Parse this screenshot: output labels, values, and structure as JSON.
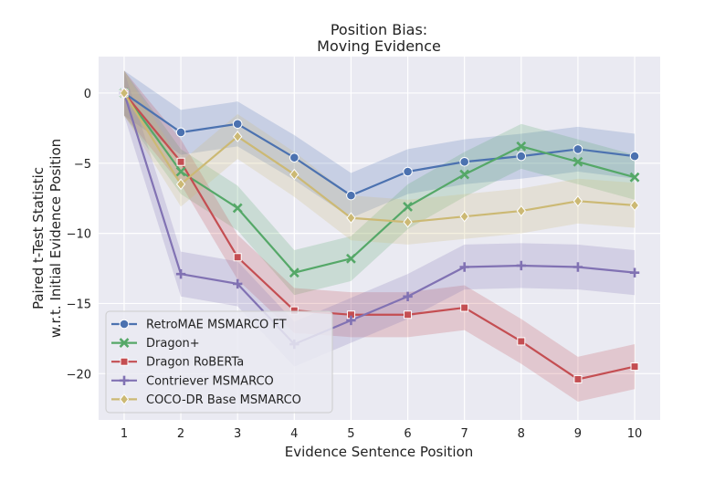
{
  "chart_data": {
    "type": "line",
    "title": [
      "Position Bias:",
      "Moving Evidence"
    ],
    "xlabel": "Evidence Sentence Position",
    "ylabel": [
      "Paired t-Test Statistic",
      "w.r.t. Initial Evidence Position"
    ],
    "x": [
      1,
      2,
      3,
      4,
      5,
      6,
      7,
      8,
      9,
      10
    ],
    "xticks": [
      1,
      2,
      3,
      4,
      5,
      6,
      7,
      8,
      9,
      10
    ],
    "yticks": [
      0,
      -5,
      -10,
      -15,
      -20
    ],
    "xlim": [
      0.55,
      10.45
    ],
    "ylim": [
      -23.3,
      2.6
    ],
    "grid": true,
    "legend_position": "lower-left",
    "series": [
      {
        "name": "RetroMAE MSMARCO FT",
        "color": "#4c72b0",
        "marker": "circle",
        "values": [
          0,
          -2.8,
          -2.2,
          -4.6,
          -7.3,
          -5.6,
          -4.9,
          -4.5,
          -4.0,
          -4.5
        ],
        "band_halfwidth": [
          1.6,
          1.6,
          1.6,
          1.6,
          1.6,
          1.6,
          1.6,
          1.6,
          1.6,
          1.6
        ]
      },
      {
        "name": "Dragon+",
        "color": "#55a868",
        "marker": "x",
        "values": [
          0,
          -5.6,
          -8.2,
          -12.8,
          -11.8,
          -8.1,
          -5.8,
          -3.8,
          -4.9,
          -6.0
        ],
        "band_halfwidth": [
          1.6,
          1.6,
          1.6,
          1.6,
          1.6,
          1.6,
          1.6,
          1.6,
          1.6,
          1.6
        ]
      },
      {
        "name": "Dragon RoBERTa",
        "color": "#c44e52",
        "marker": "square",
        "values": [
          0,
          -4.9,
          -11.7,
          -15.5,
          -15.8,
          -15.8,
          -15.3,
          -17.7,
          -20.4,
          -19.5
        ],
        "band_halfwidth": [
          1.6,
          1.6,
          1.6,
          1.6,
          1.6,
          1.6,
          1.6,
          1.6,
          1.6,
          1.6
        ]
      },
      {
        "name": "Contriever MSMARCO",
        "color": "#8172b3",
        "marker": "plus",
        "values": [
          0,
          -12.9,
          -13.6,
          -17.9,
          -16.2,
          -14.5,
          -12.4,
          -12.3,
          -12.4,
          -12.8
        ],
        "band_halfwidth": [
          1.6,
          1.6,
          1.6,
          1.6,
          1.6,
          1.6,
          1.6,
          1.6,
          1.6,
          1.6
        ]
      },
      {
        "name": "COCO-DR Base MSMARCO",
        "color": "#ccb974",
        "marker": "diamond",
        "values": [
          0,
          -6.5,
          -3.1,
          -5.8,
          -8.9,
          -9.2,
          -8.8,
          -8.4,
          -7.7,
          -8.0
        ],
        "band_halfwidth": [
          1.6,
          1.6,
          1.6,
          1.6,
          1.6,
          1.6,
          1.6,
          1.6,
          1.6,
          1.6
        ]
      }
    ]
  }
}
